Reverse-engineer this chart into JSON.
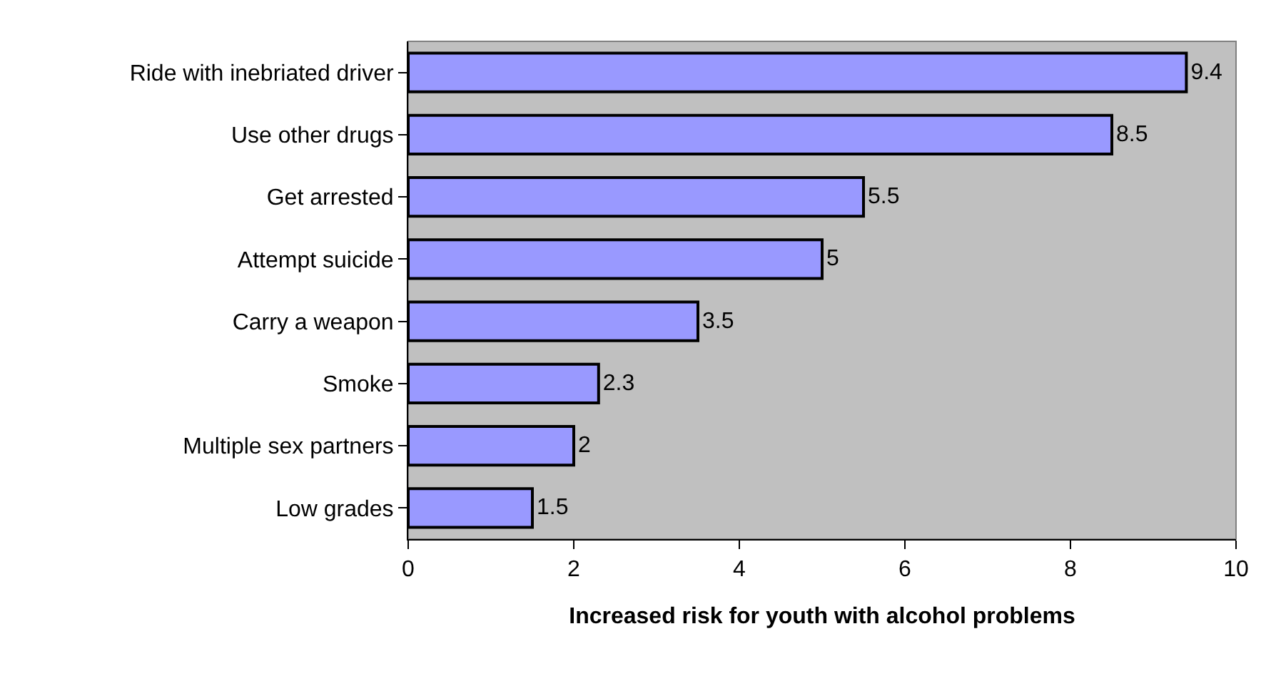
{
  "chart_data": {
    "type": "bar",
    "orientation": "horizontal",
    "xlabel": "Increased risk for youth with alcohol problems",
    "categories": [
      "Ride with inebriated driver",
      "Use other drugs",
      "Get arrested",
      "Attempt suicide",
      "Carry a weapon",
      "Smoke",
      "Multiple sex partners",
      "Low grades"
    ],
    "values": [
      9.4,
      8.5,
      5.5,
      5,
      3.5,
      2.3,
      2,
      1.5
    ],
    "color": "#9999ff",
    "xlim": [
      0,
      10
    ],
    "xticks": [
      0,
      2,
      4,
      6,
      8,
      10
    ],
    "data_labels": true,
    "grid": false,
    "legend": false
  }
}
